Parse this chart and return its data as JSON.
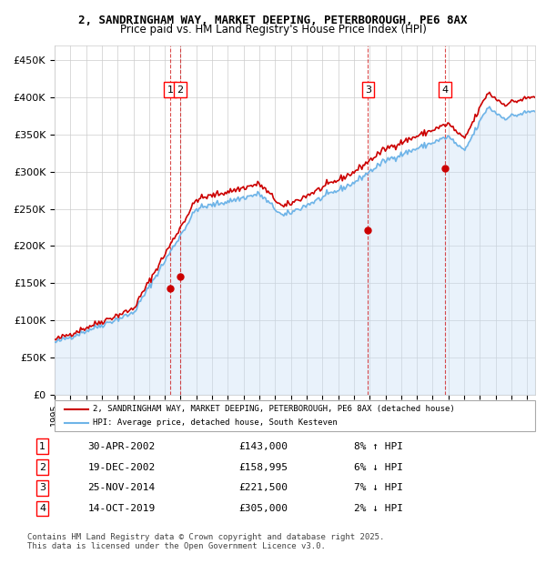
{
  "title_line1": "2, SANDRINGHAM WAY, MARKET DEEPING, PETERBOROUGH, PE6 8AX",
  "title_line2": "Price paid vs. HM Land Registry's House Price Index (HPI)",
  "ylabel": "",
  "xlabel": "",
  "ylim": [
    0,
    470000
  ],
  "yticks": [
    0,
    50000,
    100000,
    150000,
    200000,
    250000,
    300000,
    350000,
    400000,
    450000
  ],
  "ytick_labels": [
    "£0",
    "£50K",
    "£100K",
    "£150K",
    "£200K",
    "£250K",
    "£300K",
    "£350K",
    "£400K",
    "£450K"
  ],
  "xlim_start": 1995.0,
  "xlim_end": 2025.5,
  "sale_dates_decimal": [
    2002.33,
    2002.97,
    2014.9,
    2019.79
  ],
  "sale_prices": [
    143000,
    158995,
    221500,
    305000
  ],
  "sale_labels": [
    "1",
    "2",
    "3",
    "4"
  ],
  "sale_info": [
    {
      "label": "1",
      "date": "30-APR-2002",
      "price": "£143,000",
      "pct": "8%",
      "dir": "↑"
    },
    {
      "label": "2",
      "date": "19-DEC-2002",
      "price": "£158,995",
      "pct": "6%",
      "dir": "↓"
    },
    {
      "label": "3",
      "date": "25-NOV-2014",
      "price": "£221,500",
      "pct": "7%",
      "dir": "↓"
    },
    {
      "label": "4",
      "date": "14-OCT-2019",
      "price": "£305,000",
      "pct": "2%",
      "dir": "↓"
    }
  ],
  "hpi_color": "#6eb4e8",
  "hpi_fill_color": "#c8dff5",
  "sale_line_color": "#cc0000",
  "sale_dot_color": "#cc0000",
  "vline_color": "#cc0000",
  "legend_house_label": "2, SANDRINGHAM WAY, MARKET DEEPING, PETERBOROUGH, PE6 8AX (detached house)",
  "legend_hpi_label": "HPI: Average price, detached house, South Kesteven",
  "footer_text": "Contains HM Land Registry data © Crown copyright and database right 2025.\nThis data is licensed under the Open Government Licence v3.0.",
  "background_color": "#ffffff",
  "grid_color": "#cccccc"
}
